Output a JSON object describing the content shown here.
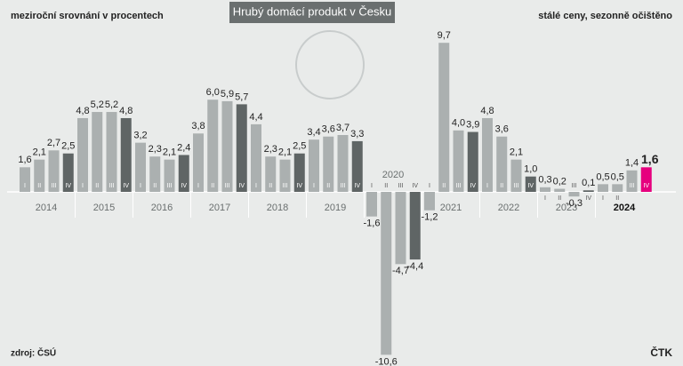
{
  "chart_data": {
    "type": "bar",
    "title": "Hrubý domácí produkt v Česku",
    "subtitle": "meziroční srovnání v procentech",
    "note": "stálé ceny, sezonně očištěno",
    "source": "zdroj: ČSÚ",
    "credit": "ČTK",
    "years": [
      "2014",
      "2015",
      "2016",
      "2017",
      "2018",
      "2019",
      "2020",
      "2021",
      "2022",
      "2023",
      "2024"
    ],
    "categories": [
      "I",
      "II",
      "III",
      "IV",
      "I",
      "II",
      "III",
      "IV",
      "I",
      "II",
      "III",
      "IV",
      "I",
      "II",
      "III",
      "IV",
      "I",
      "II",
      "III",
      "IV",
      "I",
      "II",
      "III",
      "IV",
      "I",
      "II",
      "III",
      "IV",
      "I",
      "II",
      "III",
      "IV",
      "I",
      "II",
      "III",
      "IV",
      "I",
      "II",
      "III",
      "IV",
      "I",
      "II",
      "III",
      "IV"
    ],
    "values": [
      1.6,
      2.1,
      2.7,
      2.5,
      4.8,
      5.2,
      5.2,
      4.8,
      3.2,
      2.3,
      2.1,
      2.4,
      3.8,
      6.0,
      5.9,
      5.7,
      4.4,
      2.3,
      2.1,
      2.5,
      3.4,
      3.6,
      3.7,
      3.3,
      -1.6,
      -10.6,
      -4.7,
      -4.4,
      -1.2,
      9.7,
      4.0,
      3.9,
      4.8,
      3.6,
      2.1,
      1.0,
      0.3,
      0.2,
      -0.3,
      0.1,
      0.5,
      0.5,
      1.4,
      1.6
    ],
    "value_labels": [
      "1,6",
      "2,1",
      "2,7",
      "2,5",
      "4,8",
      "5,2",
      "5,2",
      "4,8",
      "3,2",
      "2,3",
      "2,1",
      "2,4",
      "3,8",
      "6,0",
      "5,9",
      "5,7",
      "4,4",
      "2,3",
      "2,1",
      "2,5",
      "3,4",
      "3,6",
      "3,7",
      "3,3",
      "-1,6",
      "-10,6",
      "-4,7",
      "-4,4",
      "-1,2",
      "9,7",
      "4,0",
      "3,9",
      "4,8",
      "3,6",
      "2,1",
      "1,0",
      "0,3",
      "0,2",
      "-0,3",
      "0,1",
      "0,5",
      "0,5",
      "1,4",
      "1,6"
    ],
    "colors": [
      "#abb0b0",
      "#abb0b0",
      "#abb0b0",
      "#5f6565",
      "#abb0b0",
      "#abb0b0",
      "#abb0b0",
      "#5f6565",
      "#abb0b0",
      "#abb0b0",
      "#abb0b0",
      "#5f6565",
      "#abb0b0",
      "#abb0b0",
      "#abb0b0",
      "#5f6565",
      "#abb0b0",
      "#abb0b0",
      "#abb0b0",
      "#5f6565",
      "#abb0b0",
      "#abb0b0",
      "#abb0b0",
      "#5f6565",
      "#abb0b0",
      "#abb0b0",
      "#abb0b0",
      "#5f6565",
      "#abb0b0",
      "#abb0b0",
      "#abb0b0",
      "#5f6565",
      "#abb0b0",
      "#abb0b0",
      "#abb0b0",
      "#5f6565",
      "#abb0b0",
      "#abb0b0",
      "#abb0b0",
      "#5f6565",
      "#abb0b0",
      "#abb0b0",
      "#abb0b0",
      "#e6007e"
    ]
  }
}
